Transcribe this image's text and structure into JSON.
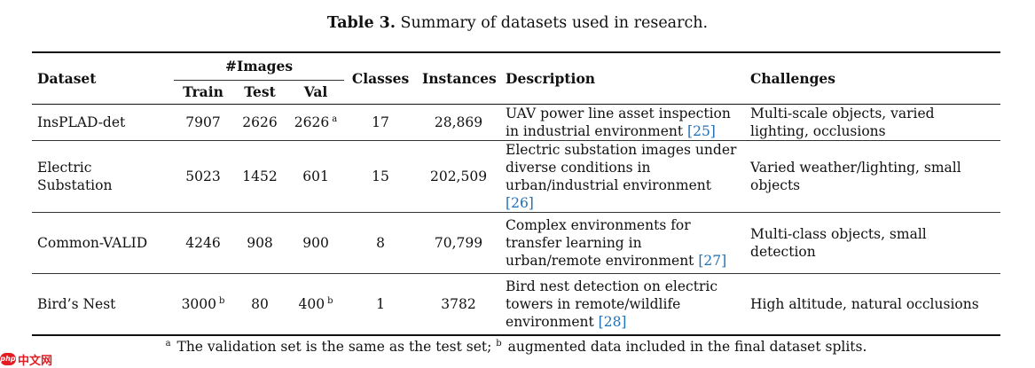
{
  "caption": {
    "label": "Table 3.",
    "text": "Summary of datasets used in research."
  },
  "headers": {
    "dataset": "Dataset",
    "images_group": "#Images",
    "train": "Train",
    "test": "Test",
    "val": "Val",
    "classes": "Classes",
    "instances": "Instances",
    "description": "Description",
    "challenges": "Challenges"
  },
  "rows": [
    {
      "dataset": "InsPLAD-det",
      "train": "7907",
      "train_note": "",
      "test": "2626",
      "val": "2626",
      "val_note": "a",
      "classes": "17",
      "instances": "28,869",
      "description": "UAV power line asset inspection in industrial environment",
      "ref": "[25]",
      "challenges": "Multi-scale objects, varied lighting, occlusions"
    },
    {
      "dataset": "Electric Substation",
      "train": "5023",
      "train_note": "",
      "test": "1452",
      "val": "601",
      "val_note": "",
      "classes": "15",
      "instances": "202,509",
      "description": "Electric substation images under diverse conditions in urban/industrial environment",
      "ref": "[26]",
      "challenges": "Varied weather/lighting, small objects"
    },
    {
      "dataset": "Common-VALID",
      "train": "4246",
      "train_note": "",
      "test": "908",
      "val": "900",
      "val_note": "",
      "classes": "8",
      "instances": "70,799",
      "description": "Complex environments for transfer learning in urban/remote environment",
      "ref": "[27]",
      "challenges": "Multi-class objects, small detection"
    },
    {
      "dataset": "Bird’s Nest",
      "train": "3000",
      "train_note": "b",
      "test": "80",
      "val": "400",
      "val_note": "b",
      "classes": "1",
      "instances": "3782",
      "description": "Bird nest detection on electric towers in remote/wildlife environment",
      "ref": "[28]",
      "challenges": "High altitude, natural occlusions"
    }
  ],
  "footnote": {
    "mark_a": "a",
    "text_a": "The validation set is the same as the test set;",
    "mark_b": "b",
    "text_b": "augmented data included in the final dataset splits."
  },
  "watermark": {
    "logo": "php",
    "text": "中文网"
  }
}
